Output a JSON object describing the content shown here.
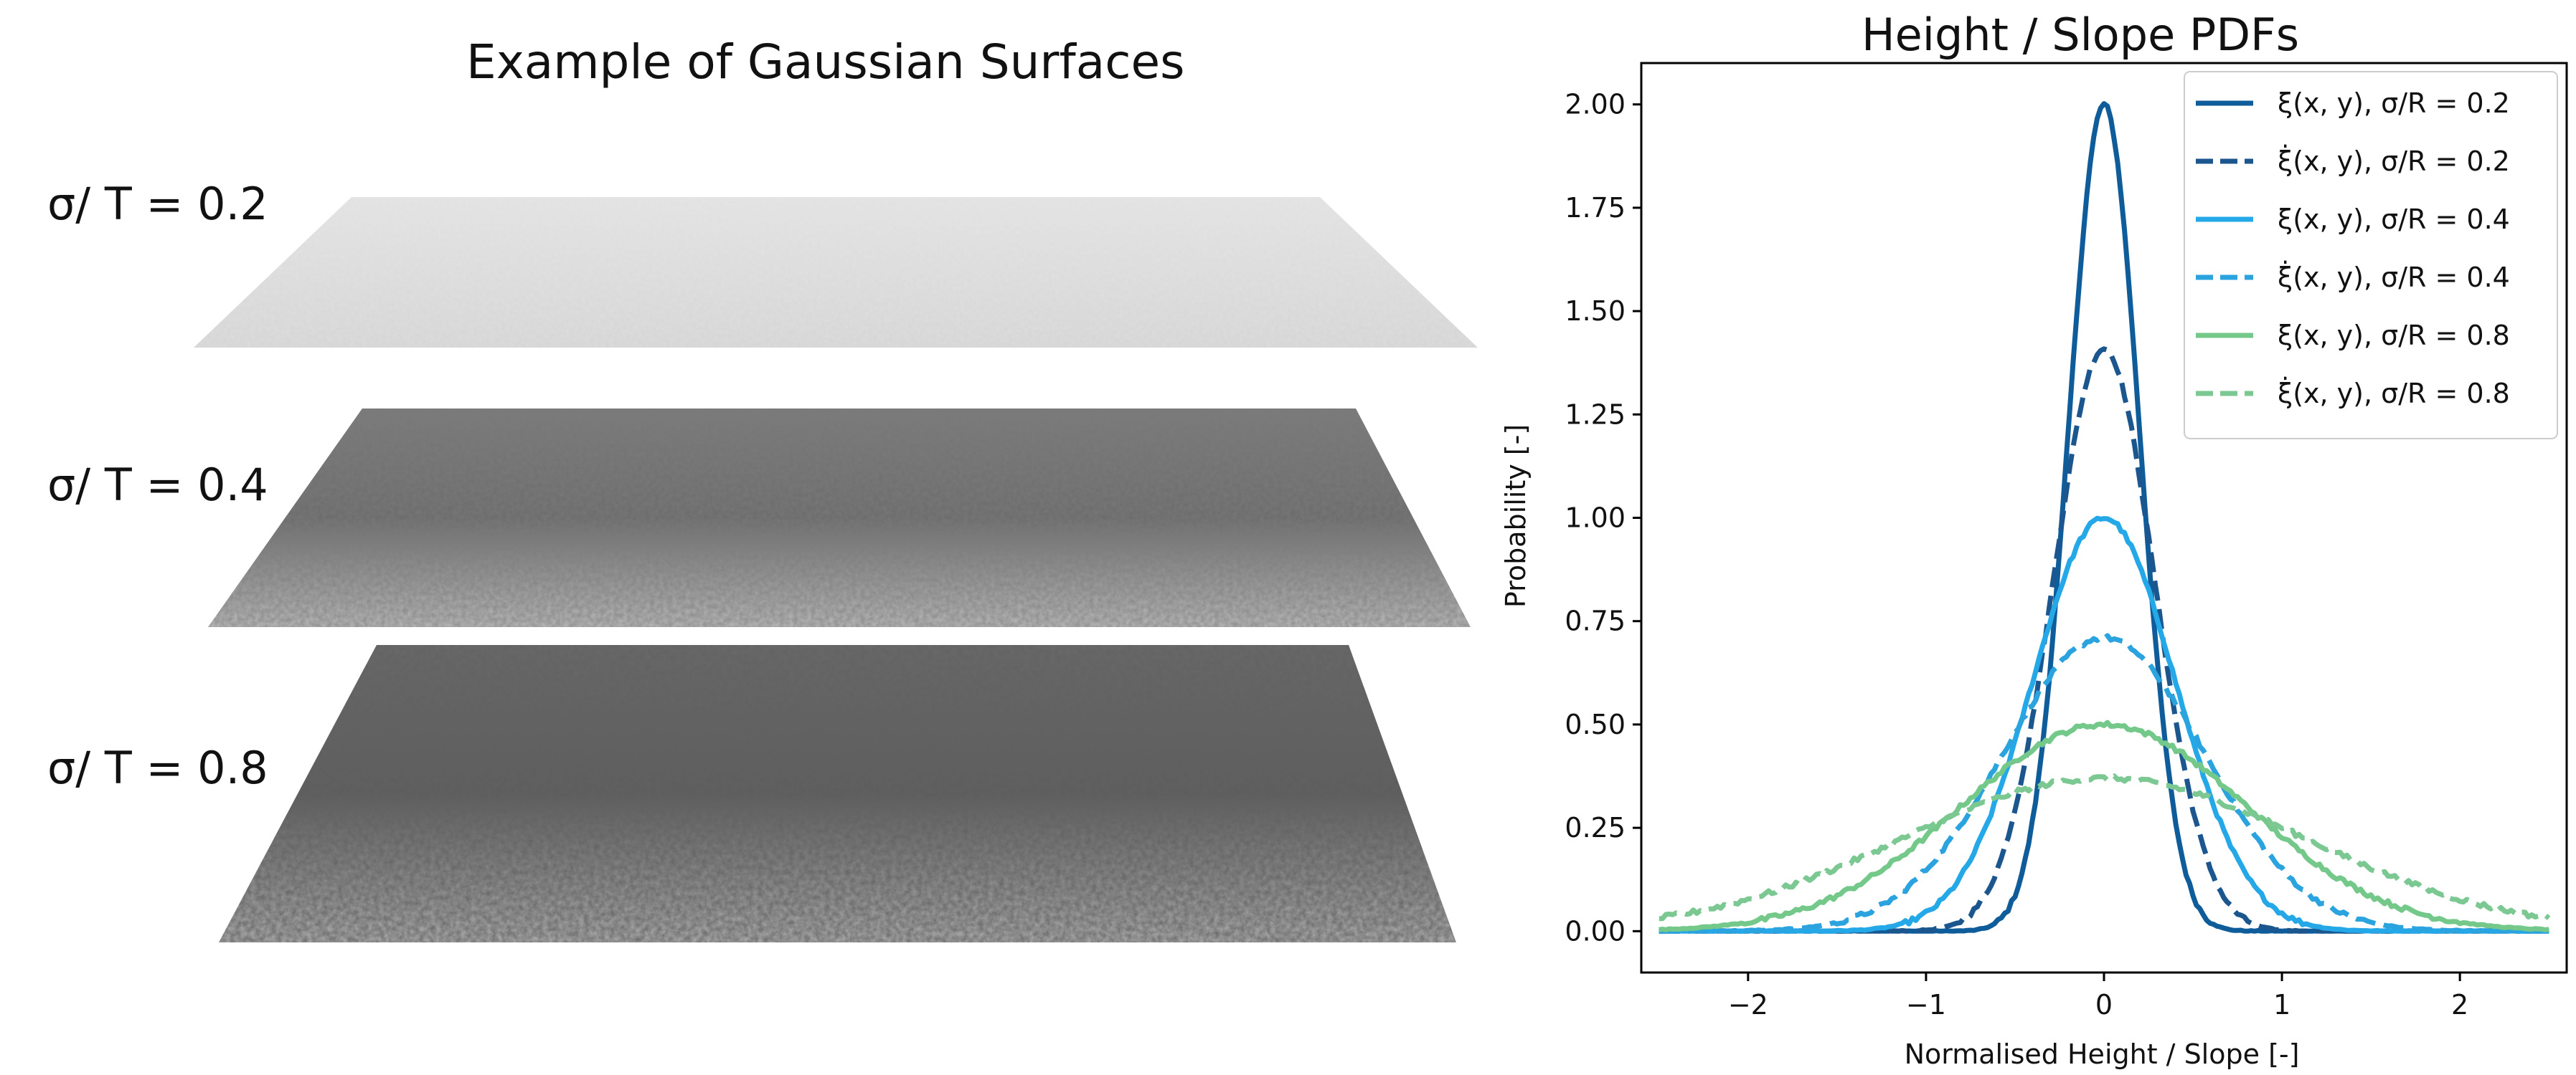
{
  "left_panel": {
    "title": "Example of Gaussian Surfaces",
    "surfaces": [
      {
        "label": "σ/ T = 0.2",
        "sigma_over_T": 0.2
      },
      {
        "label": "σ/ T = 0.4",
        "sigma_over_T": 0.4
      },
      {
        "label": "σ/ T = 0.8",
        "sigma_over_T": 0.8
      }
    ]
  },
  "chart_data": {
    "type": "line",
    "title": "Height / Slope PDFs",
    "xlabel": "Normalised Height / Slope [-]",
    "ylabel": "Probability [-]",
    "xlim": [
      -2.6,
      2.6
    ],
    "ylim": [
      -0.1,
      2.1
    ],
    "xticks": [
      -2,
      -1,
      0,
      1,
      2
    ],
    "xtick_labels": [
      "−2",
      "−1",
      "0",
      "1",
      "2"
    ],
    "yticks": [
      0.0,
      0.25,
      0.5,
      0.75,
      1.0,
      1.25,
      1.5,
      1.75,
      2.0
    ],
    "ytick_labels": [
      "0.00",
      "0.25",
      "0.50",
      "0.75",
      "1.00",
      "1.25",
      "1.50",
      "1.75",
      "2.00"
    ],
    "grid": false,
    "legend_position": "top-right",
    "x_range": [
      -2.5,
      2.5
    ],
    "series": [
      {
        "name": "ξ(x, y), σ/R = 0.2",
        "sigma": 0.2,
        "peak": 2.0,
        "color": "#0f5c9a",
        "dashed": false
      },
      {
        "name": "ξ̇(x, y), σ/R = 0.2",
        "sigma": 0.283,
        "peak": 1.41,
        "color": "#1b568f",
        "dashed": true
      },
      {
        "name": "ξ(x, y), σ/R = 0.4",
        "sigma": 0.4,
        "peak": 1.0,
        "color": "#25a8e8",
        "dashed": false
      },
      {
        "name": "ξ̇(x, y), σ/R = 0.4",
        "sigma": 0.566,
        "peak": 0.71,
        "color": "#2aa3df",
        "dashed": true
      },
      {
        "name": "ξ(x, y), σ/R = 0.8",
        "sigma": 0.8,
        "peak": 0.5,
        "color": "#74c98a",
        "dashed": false
      },
      {
        "name": "ξ̇(x, y), σ/R = 0.8",
        "sigma": 1.13,
        "peak": 0.37,
        "color": "#7cc892",
        "dashed": true
      }
    ]
  }
}
